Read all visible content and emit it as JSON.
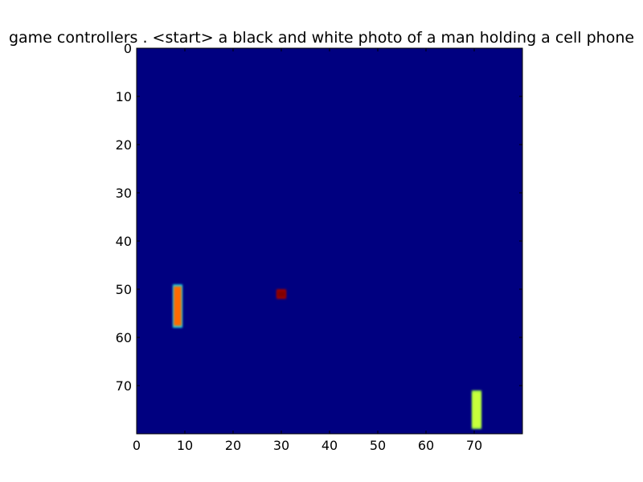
{
  "chart_data": {
    "type": "heatmap",
    "title": "game controllers . <start> a black and white photo of a man holding a cell phone",
    "xlabel": "",
    "ylabel": "",
    "xlim": [
      0,
      80
    ],
    "ylim": [
      0,
      80
    ],
    "y_inverted": true,
    "grid": false,
    "colormap": "jet",
    "background_color": "#000080",
    "x_ticks": [
      0,
      10,
      20,
      30,
      40,
      50,
      60,
      70
    ],
    "y_ticks": [
      0,
      10,
      20,
      30,
      40,
      50,
      60,
      70
    ],
    "x_tick_labels": [
      "0",
      "10",
      "20",
      "30",
      "40",
      "50",
      "60",
      "70"
    ],
    "y_tick_labels": [
      "0",
      "10",
      "20",
      "30",
      "40",
      "50",
      "60",
      "70"
    ],
    "regions": [
      {
        "x0": 7.5,
        "x1": 9.5,
        "y0": 49,
        "y1": 58,
        "core_color": "#ff6a00",
        "edge_color": "#1fd2e0"
      },
      {
        "x0": 29,
        "x1": 31,
        "y0": 50,
        "y1": 52,
        "core_color": "#800000",
        "edge_color": "#a00000"
      },
      {
        "x0": 69.5,
        "x1": 71.5,
        "y0": 71,
        "y1": 79,
        "core_color": "#c8ff3a",
        "edge_color": "#9cf04a"
      }
    ]
  }
}
